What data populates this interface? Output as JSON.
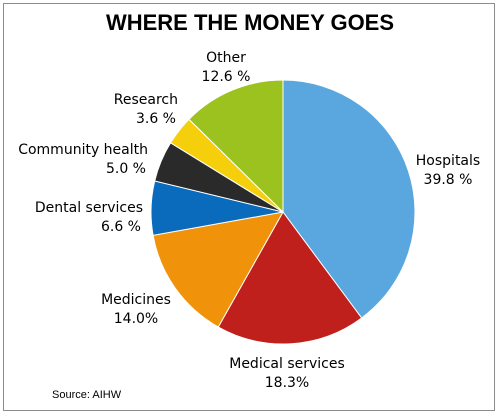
{
  "chart_data": {
    "type": "pie",
    "title": "WHERE THE MONEY GOES",
    "source": "Source: AIHW",
    "slices": [
      {
        "name": "Hospitals",
        "label": "39.8 %",
        "value": 39.8,
        "color": "#5aa7df"
      },
      {
        "name": "Medical services",
        "label": "18.3%",
        "value": 18.3,
        "color": "#c0201b"
      },
      {
        "name": "Medicines",
        "label": "14.0%",
        "value": 14.0,
        "color": "#f0930a"
      },
      {
        "name": "Dental services",
        "label": "6.6 %",
        "value": 6.6,
        "color": "#0a6bbd"
      },
      {
        "name": "Community health",
        "label": "5.0 %",
        "value": 5.0,
        "color": "#2a2a2a"
      },
      {
        "name": "Research",
        "label": "3.6 %",
        "value": 3.6,
        "color": "#f6cf0c"
      },
      {
        "name": "Other",
        "label": "12.6 %",
        "value": 12.6,
        "color": "#9cc21f"
      }
    ]
  }
}
